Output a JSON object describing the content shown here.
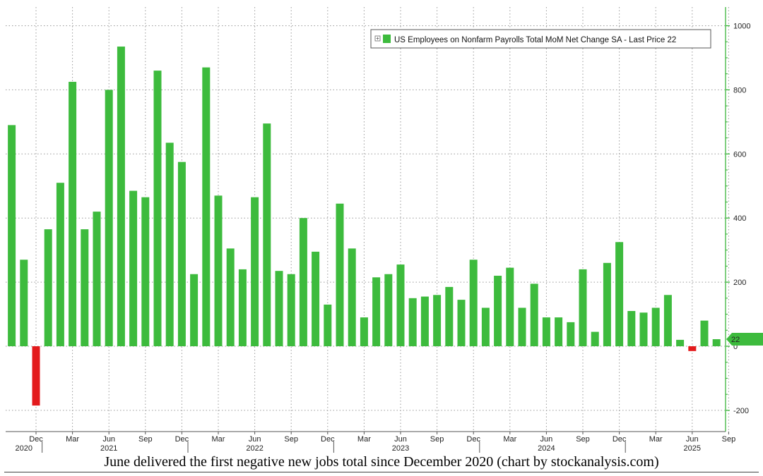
{
  "chart_data": {
    "type": "bar",
    "legend": "US Employees on Nonfarm Payrolls Total MoM Net Change SA - Last Price 22",
    "legend_position": "top-right",
    "last_price_label": "22",
    "last_price_value": 22,
    "ylim": [
      -240,
      1060
    ],
    "y_ticks": [
      -200,
      0,
      200,
      400,
      600,
      800,
      1000
    ],
    "y_tick_labels": [
      "-200",
      "0",
      "200",
      "400",
      "600",
      "800",
      "1000"
    ],
    "grid": true,
    "positive_color": "#3dbb3d",
    "negative_color": "#e31a1c",
    "axis_color": "#2eaf2e",
    "values": [
      690,
      270,
      -185,
      365,
      510,
      825,
      365,
      420,
      800,
      935,
      485,
      465,
      860,
      635,
      575,
      225,
      870,
      470,
      305,
      240,
      465,
      695,
      235,
      225,
      400,
      295,
      130,
      445,
      305,
      90,
      215,
      225,
      255,
      150,
      155,
      160,
      185,
      145,
      270,
      120,
      220,
      245,
      120,
      195,
      90,
      90,
      75,
      240,
      45,
      260,
      325,
      110,
      105,
      120,
      160,
      20,
      -15,
      80,
      22
    ],
    "month_labels": [
      {
        "label": "Dec",
        "index": 2
      },
      {
        "label": "Mar",
        "index": 5
      },
      {
        "label": "Jun",
        "index": 8
      },
      {
        "label": "Sep",
        "index": 11
      },
      {
        "label": "Dec",
        "index": 14
      },
      {
        "label": "Mar",
        "index": 17
      },
      {
        "label": "Jun",
        "index": 20
      },
      {
        "label": "Sep",
        "index": 23
      },
      {
        "label": "Dec",
        "index": 26
      },
      {
        "label": "Mar",
        "index": 29
      },
      {
        "label": "Jun",
        "index": 32
      },
      {
        "label": "Sep",
        "index": 35
      },
      {
        "label": "Dec",
        "index": 38
      },
      {
        "label": "Mar",
        "index": 41
      },
      {
        "label": "Jun",
        "index": 44
      },
      {
        "label": "Sep",
        "index": 47
      },
      {
        "label": "Dec",
        "index": 50
      },
      {
        "label": "Mar",
        "index": 53
      },
      {
        "label": "Jun",
        "index": 56
      },
      {
        "label": "Sep",
        "index": 59
      }
    ],
    "year_labels": [
      {
        "label": "2020",
        "index": 1
      },
      {
        "label": "2021",
        "index": 8
      },
      {
        "label": "2022",
        "index": 20
      },
      {
        "label": "2023",
        "index": 32
      },
      {
        "label": "2024",
        "index": 44
      },
      {
        "label": "2025",
        "index": 56
      }
    ],
    "year_dividers": [
      3,
      15,
      27,
      39,
      51
    ]
  },
  "caption": "June delivered the first negative new jobs total since December 2020 (chart by stockanalysis.com)"
}
